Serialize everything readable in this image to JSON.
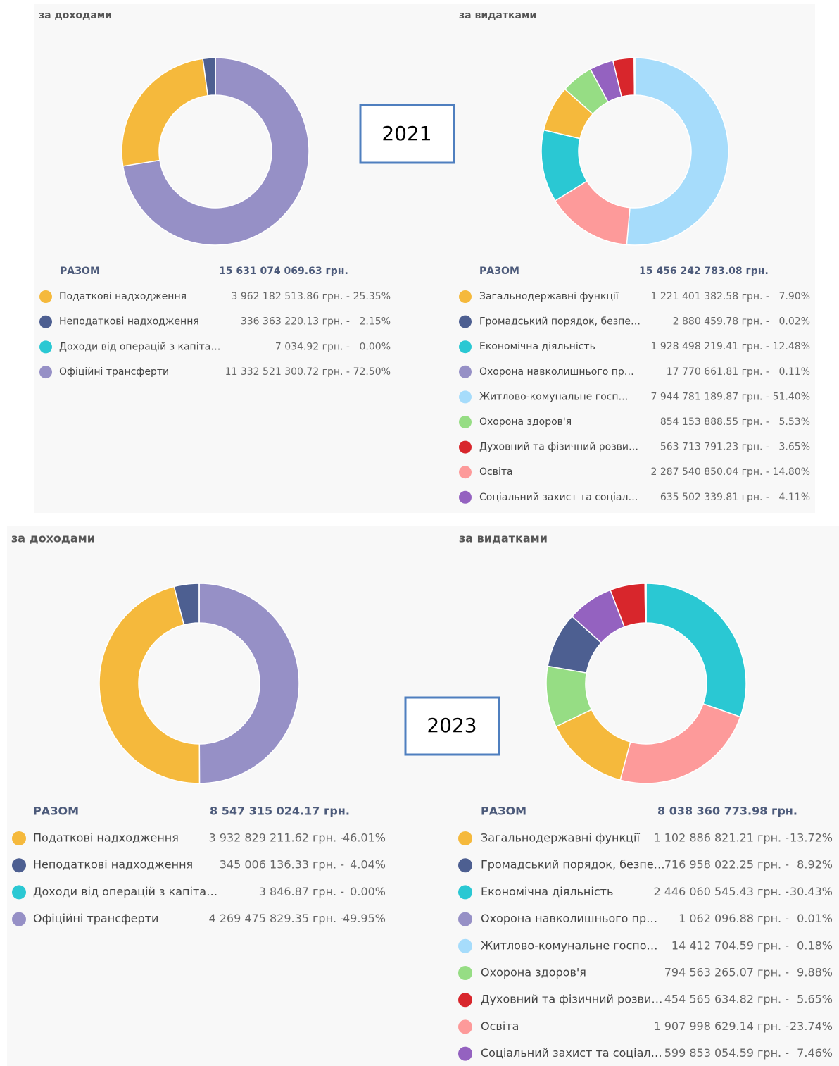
{
  "year_labels": [
    "2021",
    "2023"
  ],
  "chart_data": [
    {
      "type": "pie",
      "title": "за доходами",
      "total_label": "РАЗОМ",
      "total": "15 631 074 069.63 грн.",
      "slice_sort": "descending",
      "categories": [
        "Податкові надходження",
        "Неподаткові надходження",
        "Доходи від операцій з капіта…",
        "Офіційні трансферти"
      ],
      "values": [
        25.35,
        2.15,
        0.0,
        72.5
      ],
      "value_labels": [
        "25.35%",
        "2.15%",
        "0.00%",
        "72.50%"
      ],
      "amounts": [
        "3 962 182 513.86 грн. -",
        "336 363 220.13 грн. -",
        "7 034.92 грн. -",
        "11 332 521 300.72 грн. -"
      ],
      "colors": [
        "#f5b93c",
        "#4d5f91",
        "#2ac8d3",
        "#9690c6"
      ]
    },
    {
      "type": "pie",
      "title": "за видатками",
      "total_label": "РАЗОМ",
      "total": "15 456 242 783.08 грн.",
      "slice_sort": "descending",
      "categories": [
        "Загальнодержавні функції",
        "Громадський порядок, безпе…",
        "Економічна діяльність",
        "Охорона навколишнього пр…",
        "Житлово-комунальне госп…",
        "Охорона здоров'я",
        "Духовний та фізичний розви…",
        "Освіта",
        "Соціальний захист та соціал…"
      ],
      "values": [
        7.9,
        0.02,
        12.48,
        0.11,
        51.4,
        5.53,
        3.65,
        14.8,
        4.11
      ],
      "value_labels": [
        "7.90%",
        "0.02%",
        "12.48%",
        "0.11%",
        "51.40%",
        "5.53%",
        "3.65%",
        "14.80%",
        "4.11%"
      ],
      "amounts": [
        "1 221 401 382.58 грн. -",
        "2 880 459.78 грн. -",
        "1 928 498 219.41 грн. -",
        "17 770 661.81 грн. -",
        "7 944 781 189.87 грн. -",
        "854 153 888.55 грн. -",
        "563 713 791.23 грн. -",
        "2 287 540 850.04 грн. -",
        "635 502 339.81 грн. -"
      ],
      "colors": [
        "#f5b93c",
        "#4d5f91",
        "#2ac8d3",
        "#9690c6",
        "#a6dcfb",
        "#96dd84",
        "#d8262c",
        "#fd9a9a",
        "#9462c0"
      ]
    },
    {
      "type": "pie",
      "title": "за доходами",
      "total_label": "РАЗОМ",
      "total": "8 547 315 024.17 грн.",
      "slice_sort": "descending",
      "categories": [
        "Податкові надходження",
        "Неподаткові надходження",
        "Доходи від операцій з капіта…",
        "Офіційні трансферти"
      ],
      "values": [
        46.01,
        4.04,
        0.0,
        49.95
      ],
      "value_labels": [
        "46.01%",
        "4.04%",
        "0.00%",
        "49.95%"
      ],
      "amounts": [
        "3 932 829 211.62 грн. -",
        "345 006 136.33 грн. -",
        "3 846.87 грн. -",
        "4 269 475 829.35 грн. -"
      ],
      "colors": [
        "#f5b93c",
        "#4d5f91",
        "#2ac8d3",
        "#9690c6"
      ]
    },
    {
      "type": "pie",
      "title": "за видатками",
      "total_label": "РАЗОМ",
      "total": "8 038 360 773.98 грн.",
      "slice_sort": "descending",
      "categories": [
        "Загальнодержавні функції",
        "Громадський порядок, безпе…",
        "Економічна діяльність",
        "Охорона навколишнього пр…",
        "Житлово-комунальне госпо…",
        "Охорона здоров'я",
        "Духовний та фізичний розви…",
        "Освіта",
        "Соціальний захист та соціал…"
      ],
      "values": [
        13.72,
        8.92,
        30.43,
        0.01,
        0.18,
        9.88,
        5.65,
        23.74,
        7.46
      ],
      "value_labels": [
        "13.72%",
        "8.92%",
        "30.43%",
        "0.01%",
        "0.18%",
        "9.88%",
        "5.65%",
        "23.74%",
        "7.46%"
      ],
      "amounts": [
        "1 102 886 821.21 грн. -",
        "716 958 022.25 грн. -",
        "2 446 060 545.43 грн. -",
        "1 062 096.88 грн. -",
        "14 412 704.59 грн. -",
        "794 563 265.07 грн. -",
        "454 565 634.82 грн. -",
        "1 907 998 629.14 грн. -",
        "599 853 054.59 грн. -"
      ],
      "colors": [
        "#f5b93c",
        "#4d5f91",
        "#2ac8d3",
        "#9690c6",
        "#a6dcfb",
        "#96dd84",
        "#d8262c",
        "#fd9a9a",
        "#9462c0"
      ]
    }
  ]
}
